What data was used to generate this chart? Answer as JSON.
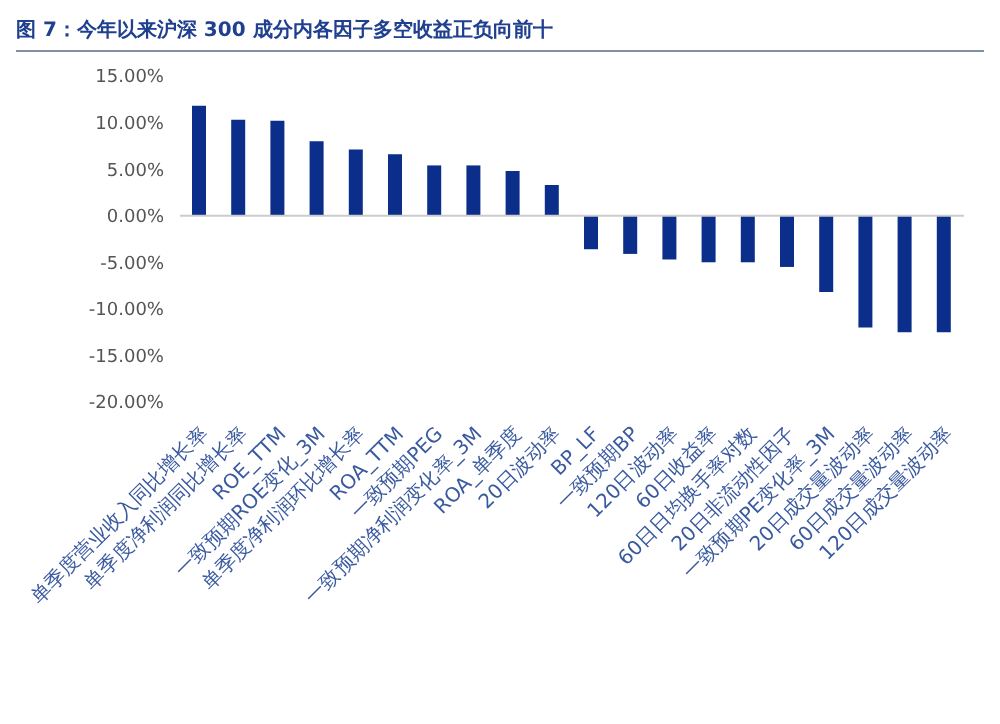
{
  "chart_data": {
    "type": "bar",
    "title": "图 7：今年以来沪深 300 成分内各因子多空收益正负向前十",
    "categories": [
      "单季度营业收入同比增长率",
      "单季度净利润同比增长率",
      "ROE_TTM",
      "一致预期ROE变化_3M",
      "单季度净利润环比增长率",
      "ROA_TTM",
      "一致预期PEG",
      "一致预期净利润变化率_3M",
      "ROA_单季度",
      "20日波动率",
      "BP_LF",
      "一致预期BP",
      "120日波动率",
      "60日收益率",
      "60日日均换手率对数",
      "20日非流动性因子",
      "一致预期PE变化率_3M",
      "20日成交量波动率",
      "60日成交量波动率",
      "120日成交量波动率"
    ],
    "values": [
      11.8,
      10.3,
      10.2,
      8.0,
      7.1,
      6.6,
      5.4,
      5.4,
      4.8,
      3.3,
      -3.6,
      -4.1,
      -4.7,
      -5.0,
      -5.0,
      -5.5,
      -8.2,
      -12.0,
      -12.5,
      -12.5
    ],
    "color": "#0a2e8a",
    "ylim": [
      -20,
      15
    ],
    "yticks": [
      {
        "value": -20,
        "label": "-20.00%"
      },
      {
        "value": -15,
        "label": "-15.00%"
      },
      {
        "value": -10,
        "label": "-10.00%"
      },
      {
        "value": -5,
        "label": "-5.00%"
      },
      {
        "value": 0,
        "label": "0.00%"
      },
      {
        "value": 5,
        "label": "5.00%"
      },
      {
        "value": 10,
        "label": "10.00%"
      },
      {
        "value": 15,
        "label": "15.00%"
      }
    ],
    "ref_lines": [
      {
        "axis": "y",
        "value": 0,
        "label": null,
        "color": "#cccccc"
      }
    ]
  }
}
